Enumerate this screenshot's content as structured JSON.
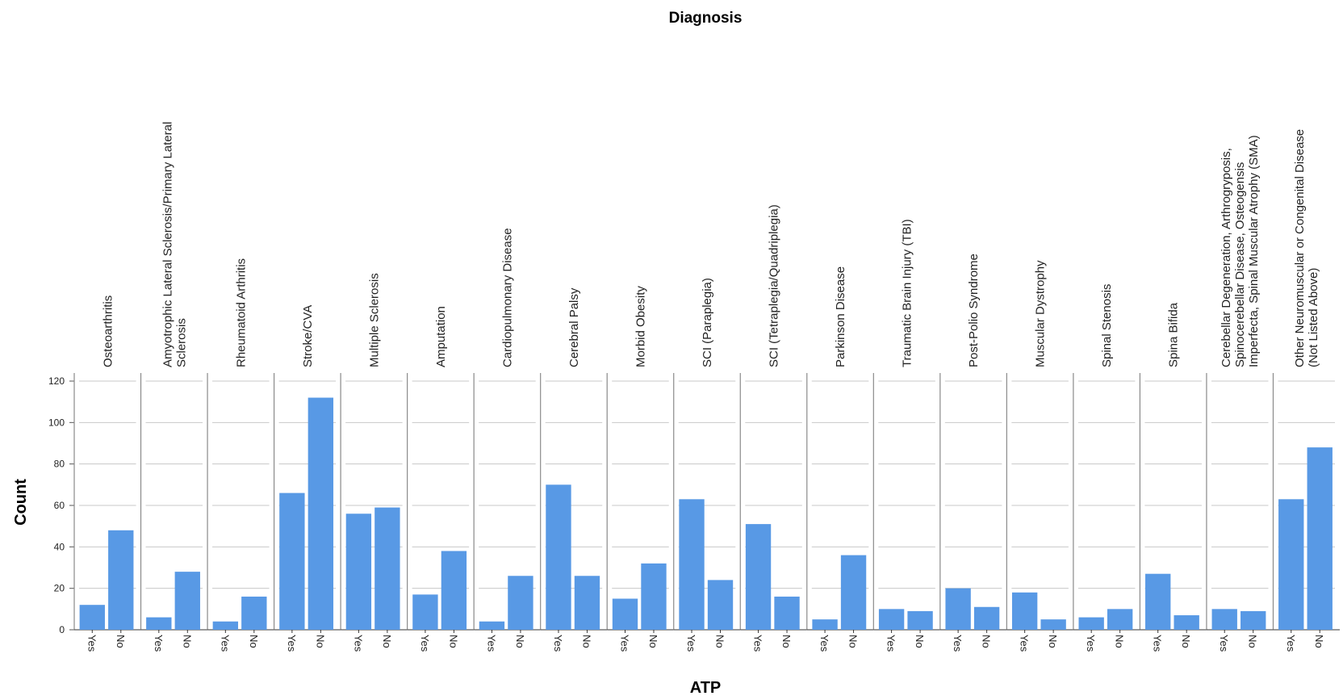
{
  "chart_data": {
    "type": "bar",
    "title": "Diagnosis",
    "xlabel": "ATP",
    "ylabel": "Count",
    "ylim": [
      0,
      120
    ],
    "yticks": [
      "0",
      "20",
      "40",
      "60",
      "80",
      "100",
      "120"
    ],
    "categories": [
      "Yes",
      "No"
    ],
    "bar_color": "#5899e5",
    "grid": true,
    "panels": [
      {
        "label": [
          "Osteoarthritis"
        ],
        "category_labels": [
          "Yes",
          "No"
        ],
        "values": [
          12,
          48
        ]
      },
      {
        "label": [
          "Amyotrophic Lateral Sclerosis/Primary Lateral",
          "Sclerosis"
        ],
        "category_labels": [
          "Yes",
          "No"
        ],
        "values": [
          6,
          28
        ]
      },
      {
        "label": [
          "Rheumatoid Arthritis"
        ],
        "category_labels": [
          "Yes",
          "No"
        ],
        "values": [
          4,
          16
        ]
      },
      {
        "label": [
          "Stroke/CVA"
        ],
        "category_labels": [
          "Yes",
          "No"
        ],
        "values": [
          66,
          112
        ]
      },
      {
        "label": [
          "Multiple Sclerosis"
        ],
        "category_labels": [
          "Yes",
          "No"
        ],
        "values": [
          56,
          59
        ]
      },
      {
        "label": [
          "Amputation"
        ],
        "category_labels": [
          "Yes",
          "No"
        ],
        "values": [
          17,
          38
        ]
      },
      {
        "label": [
          "Cardiopulmonary Disease"
        ],
        "category_labels": [
          "Yes",
          "No"
        ],
        "values": [
          4,
          26
        ]
      },
      {
        "label": [
          "Cerebral Palsy"
        ],
        "category_labels": [
          "Yes",
          "No"
        ],
        "values": [
          70,
          26
        ]
      },
      {
        "label": [
          "Morbid Obesity"
        ],
        "category_labels": [
          "Yes",
          "No"
        ],
        "values": [
          15,
          32
        ]
      },
      {
        "label": [
          "SCI (Paraplegia)"
        ],
        "category_labels": [
          "Yes",
          "No"
        ],
        "values": [
          63,
          24
        ]
      },
      {
        "label": [
          "SCI (Tetraplegia/Quadriplegia)"
        ],
        "category_labels": [
          "Yes",
          "No"
        ],
        "values": [
          51,
          16
        ]
      },
      {
        "label": [
          "Parkinson Disease"
        ],
        "category_labels": [
          "Yes",
          "No"
        ],
        "values": [
          5,
          36
        ]
      },
      {
        "label": [
          "Traumatic Brain Injury (TBI)"
        ],
        "category_labels": [
          "Yes",
          "No"
        ],
        "values": [
          10,
          9
        ]
      },
      {
        "label": [
          "Post-Polio Syndrome"
        ],
        "category_labels": [
          "Yes",
          "No"
        ],
        "values": [
          20,
          11
        ]
      },
      {
        "label": [
          "Muscular Dystrophy"
        ],
        "category_labels": [
          "Yes",
          "No"
        ],
        "values": [
          18,
          5
        ]
      },
      {
        "label": [
          "Spinal Stenosis"
        ],
        "category_labels": [
          "Yes",
          "No"
        ],
        "values": [
          6,
          10
        ]
      },
      {
        "label": [
          "Spina Bifida"
        ],
        "category_labels": [
          "Yes",
          "No"
        ],
        "values": [
          27,
          7
        ]
      },
      {
        "label": [
          "Cerebellar Degeneration, Arthrogryposis,",
          "Spinocerebellar Disease, Osteogensis",
          "Imperfecta, Spinal Muscular Atrophy (SMA)"
        ],
        "category_labels": [
          "Yes",
          "No"
        ],
        "values": [
          10,
          9
        ]
      },
      {
        "label": [
          "Other Neuromuscular or Congenital Disease",
          "(Not Listed Above)"
        ],
        "category_labels": [
          "Yes",
          "No"
        ],
        "values": [
          63,
          88
        ]
      }
    ]
  }
}
